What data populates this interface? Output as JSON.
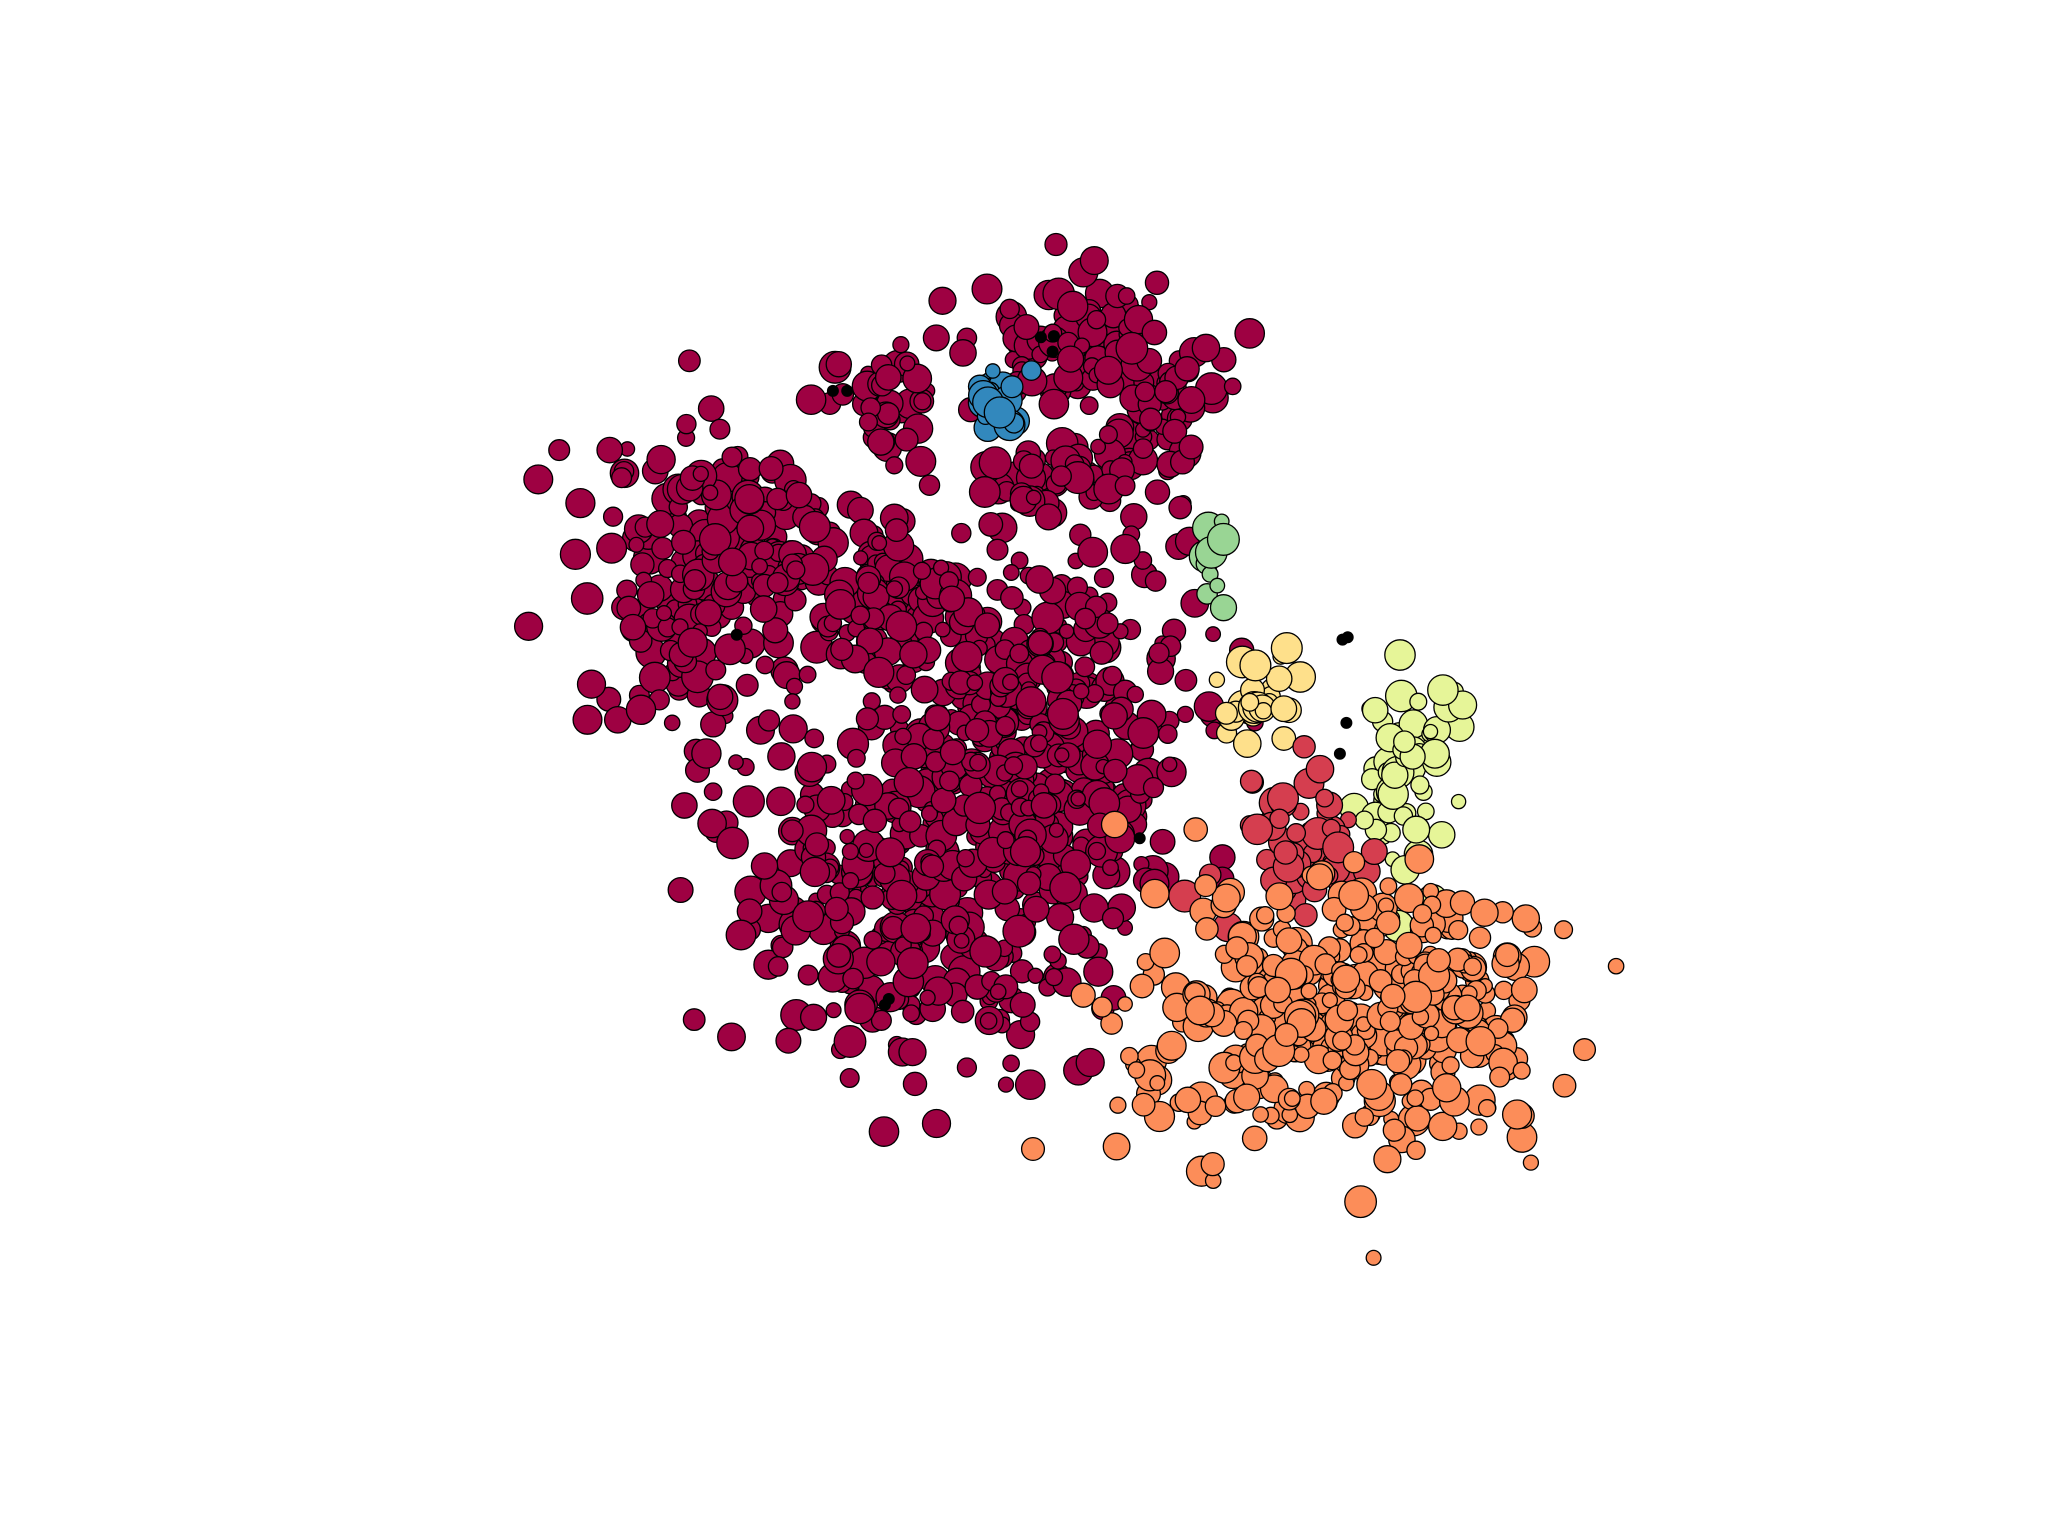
{
  "chart_data": {
    "type": "scatter",
    "title": "",
    "xlabel": "",
    "ylabel": "",
    "axes_visible": false,
    "grid": false,
    "legend": "none",
    "xlim": [
      0,
      100
    ],
    "ylim": [
      0,
      100
    ],
    "cluster_colors": {
      "dark-red": "#9e0142",
      "teal": "#3288bd",
      "mint": "#99d594",
      "light-yellow": "#fee08b",
      "pale-lime": "#e6f598",
      "red": "#d53e4f",
      "orange": "#fc8d59",
      "noise": "#000000"
    },
    "clusters": [
      {
        "color_key": "dark-red",
        "blobs": [
          {
            "x": 23,
            "y": 63,
            "sx": 4.5,
            "sy": 6.5,
            "n": 170
          },
          {
            "x": 28,
            "y": 70,
            "sx": 4.0,
            "sy": 3.0,
            "n": 70
          },
          {
            "x": 37,
            "y": 80,
            "sx": 2.2,
            "sy": 2.0,
            "n": 40
          },
          {
            "x": 51,
            "y": 85,
            "sx": 3.5,
            "sy": 3.5,
            "n": 80
          },
          {
            "x": 57,
            "y": 79,
            "sx": 3.5,
            "sy": 3.5,
            "n": 80
          },
          {
            "x": 50,
            "y": 73,
            "sx": 3.0,
            "sy": 1.8,
            "n": 40
          },
          {
            "x": 36,
            "y": 64,
            "sx": 4.5,
            "sy": 3.5,
            "n": 90
          },
          {
            "x": 48,
            "y": 56,
            "sx": 6.0,
            "sy": 6.0,
            "n": 240
          },
          {
            "x": 40,
            "y": 40,
            "sx": 7.0,
            "sy": 8.0,
            "n": 330
          },
          {
            "x": 50,
            "y": 45,
            "sx": 4.5,
            "sy": 7.0,
            "n": 170
          }
        ]
      },
      {
        "color_key": "teal",
        "blobs": [
          {
            "x": 46,
            "y": 80,
            "sx": 1.2,
            "sy": 1.5,
            "n": 22
          }
        ]
      },
      {
        "color_key": "mint",
        "blobs": [
          {
            "x": 62.5,
            "y": 66,
            "sx": 0.55,
            "sy": 1.6,
            "n": 12
          }
        ]
      },
      {
        "color_key": "light-yellow",
        "blobs": [
          {
            "x": 66,
            "y": 55,
            "sx": 2.0,
            "sy": 2.0,
            "n": 32
          }
        ]
      },
      {
        "color_key": "pale-lime",
        "blobs": [
          {
            "x": 77,
            "y": 49,
            "sx": 2.0,
            "sy": 5.0,
            "n": 65
          }
        ]
      },
      {
        "color_key": "red",
        "blobs": [
          {
            "x": 69,
            "y": 43,
            "sx": 2.7,
            "sy": 2.8,
            "n": 55
          }
        ]
      },
      {
        "color_key": "orange",
        "blobs": [
          {
            "x": 71,
            "y": 27.5,
            "sx": 8.0,
            "sy": 5.5,
            "n": 360
          },
          {
            "x": 79,
            "y": 31,
            "sx": 3.5,
            "sy": 4.5,
            "n": 90
          }
        ]
      }
    ],
    "noise_points": [
      {
        "x": 33.3,
        "y": 80.6
      },
      {
        "x": 34.4,
        "y": 80.6
      },
      {
        "x": 49.3,
        "y": 85.1
      },
      {
        "x": 50.3,
        "y": 85.2
      },
      {
        "x": 50.2,
        "y": 83.9
      },
      {
        "x": 72.5,
        "y": 59.7
      },
      {
        "x": 72.9,
        "y": 59.9
      },
      {
        "x": 72.3,
        "y": 50.1
      },
      {
        "x": 72.8,
        "y": 52.7
      },
      {
        "x": 56.9,
        "y": 43.0
      },
      {
        "x": 37.3,
        "y": 29.0
      },
      {
        "x": 37.6,
        "y": 29.5
      },
      {
        "x": 25.9,
        "y": 60.1
      }
    ]
  }
}
